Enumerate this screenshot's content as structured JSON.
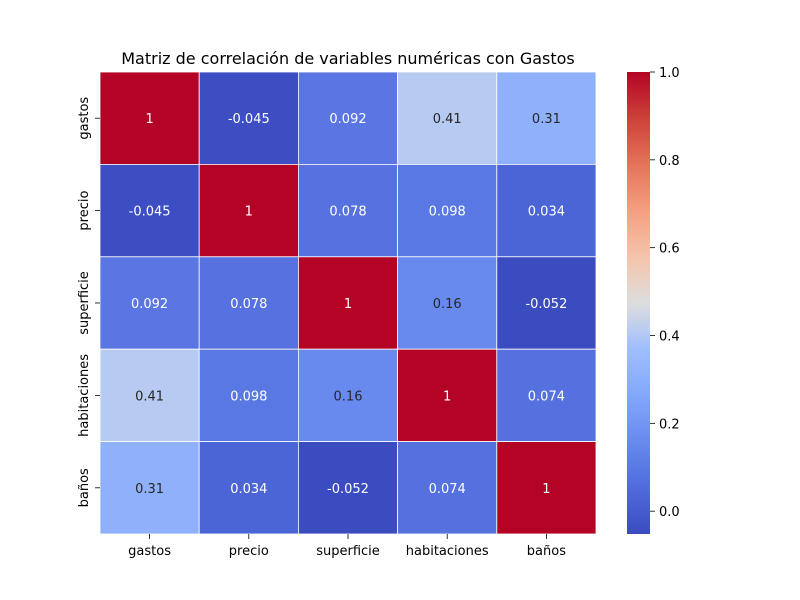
{
  "chart_data": {
    "type": "heatmap",
    "title": "Matriz de correlación de variables numéricas con Gastos",
    "x_labels": [
      "gastos",
      "precio",
      "superficie",
      "habitaciones",
      "baños"
    ],
    "y_labels": [
      "gastos",
      "precio",
      "superficie",
      "habitaciones",
      "baños"
    ],
    "values": [
      [
        1,
        -0.045,
        0.092,
        0.41,
        0.31
      ],
      [
        -0.045,
        1,
        0.078,
        0.098,
        0.034
      ],
      [
        0.092,
        0.078,
        1,
        0.16,
        -0.052
      ],
      [
        0.41,
        0.098,
        0.16,
        1,
        0.074
      ],
      [
        0.31,
        0.034,
        -0.052,
        0.074,
        1
      ]
    ],
    "value_labels": [
      [
        "1",
        "-0.045",
        "0.092",
        "0.41",
        "0.31"
      ],
      [
        "-0.045",
        "1",
        "0.078",
        "0.098",
        "0.034"
      ],
      [
        "0.092",
        "0.078",
        "1",
        "0.16",
        "-0.052"
      ],
      [
        "0.41",
        "0.098",
        "0.16",
        "1",
        "0.074"
      ],
      [
        "0.31",
        "0.034",
        "-0.052",
        "0.074",
        "1"
      ]
    ],
    "colormap": "coolwarm",
    "colorbar": {
      "range": [
        -0.052,
        1.0
      ],
      "ticks": [
        0.0,
        0.2,
        0.4,
        0.6,
        0.8,
        1.0
      ],
      "tick_labels": [
        "0.0",
        "0.2",
        "0.4",
        "0.6",
        "0.8",
        "1.0"
      ]
    },
    "grid_lines_color": "#ffffff"
  }
}
